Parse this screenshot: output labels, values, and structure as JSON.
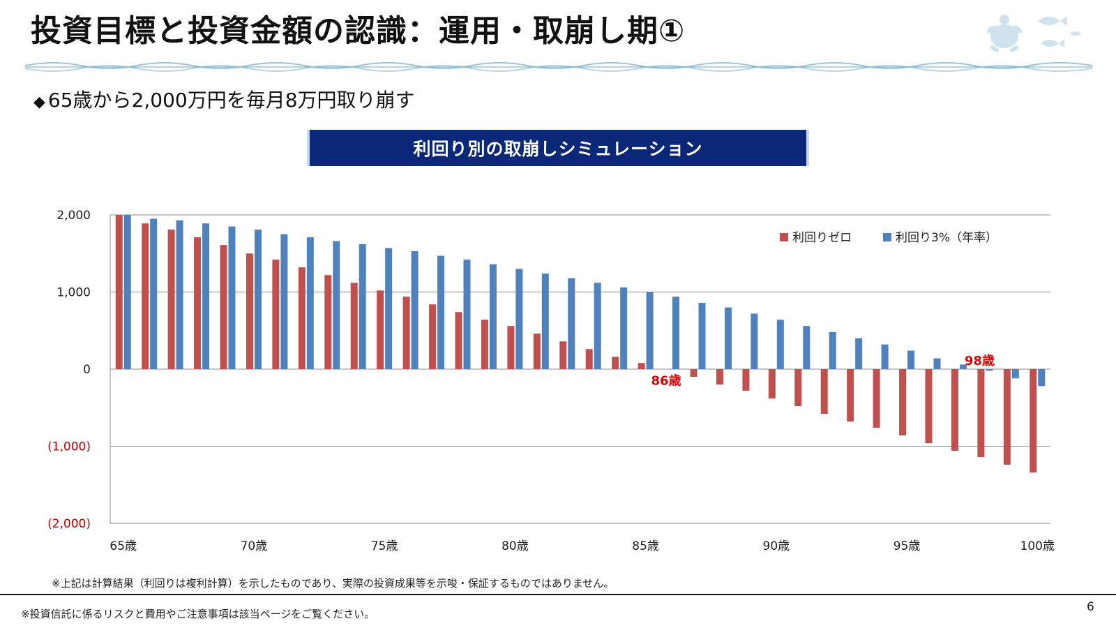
{
  "slide": {
    "title": "投資目標と投資金額の認識：運用・取崩し期①",
    "subtitle": "65歳から2,000万円を毎月8万円取り崩す",
    "subtitle_bullet": "◆",
    "banner": "利回り別の取崩しシミュレーション",
    "note": "※上記は計算結果（利回りは複利計算）を示したものであり、実際の投資成果等を示唆・保証するものではありません。",
    "footer": "※投資信託に係るリスクと費用やご注意事項は該当ページをご覧ください。",
    "page_number": "6",
    "decoration_icon": "sea-turtle-fish-icon"
  },
  "colors": {
    "series_zero": "#c0504d",
    "series_3pct": "#4f81bd",
    "banner_bg": "#0b2778",
    "negative_label": "#c00000",
    "annotation": "#e00000"
  },
  "chart_data": {
    "type": "bar",
    "title": "利回り別の取崩しシミュレーション",
    "xlabel": "",
    "ylabel": "",
    "ylim": [
      -2000,
      2000
    ],
    "yticks": [
      2000,
      1000,
      0,
      -1000,
      -2000
    ],
    "ytick_labels": [
      "2,000",
      "1,000",
      "0",
      "(1,000)",
      "(2,000)"
    ],
    "x": [
      65,
      66,
      67,
      68,
      69,
      70,
      71,
      72,
      73,
      74,
      75,
      76,
      77,
      78,
      79,
      80,
      81,
      82,
      83,
      84,
      85,
      86,
      87,
      88,
      89,
      90,
      91,
      92,
      93,
      94,
      95,
      96,
      97,
      98,
      99,
      100
    ],
    "xtick_values": [
      65,
      70,
      75,
      80,
      85,
      90,
      95,
      100
    ],
    "xtick_labels": [
      "65歳",
      "70歳",
      "75歳",
      "80歳",
      "85歳",
      "90歳",
      "95歳",
      "100歳"
    ],
    "legend_position": "top-right",
    "series": [
      {
        "name": "利回りゼロ",
        "values": [
          2000,
          1890,
          1810,
          1710,
          1610,
          1500,
          1420,
          1320,
          1220,
          1120,
          1020,
          940,
          840,
          740,
          640,
          560,
          460,
          360,
          260,
          160,
          80,
          0,
          -100,
          -200,
          -280,
          -380,
          -480,
          -580,
          -680,
          -760,
          -860,
          -960,
          -1060,
          -1140,
          -1240,
          -1340
        ]
      },
      {
        "name": "利回り3%（年率）",
        "values": [
          2000,
          1950,
          1930,
          1890,
          1850,
          1810,
          1750,
          1710,
          1660,
          1620,
          1570,
          1530,
          1470,
          1420,
          1360,
          1300,
          1240,
          1180,
          1120,
          1060,
          1000,
          940,
          860,
          800,
          720,
          640,
          560,
          480,
          400,
          320,
          240,
          140,
          60,
          -20,
          -120,
          -220
        ]
      }
    ],
    "annotations": [
      {
        "text": "86歳",
        "x": 86,
        "y": -150
      },
      {
        "text": "98歳",
        "x": 98,
        "y": 110
      }
    ]
  }
}
